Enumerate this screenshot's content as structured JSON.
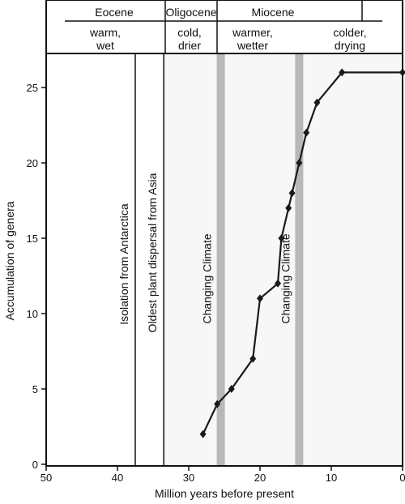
{
  "chart_data": {
    "type": "line",
    "xlabel": "Million years before present",
    "ylabel": "Accumulation of genera",
    "xlim": [
      50,
      0
    ],
    "ylim": [
      0,
      27
    ],
    "x_ticks": [
      50,
      40,
      30,
      20,
      10,
      0
    ],
    "y_ticks": [
      0,
      5,
      10,
      15,
      20,
      25
    ],
    "series": [
      {
        "x": [
          28,
          26,
          24,
          21,
          20,
          17.5,
          17,
          16,
          15.5,
          14.5,
          13.5,
          12,
          8.5,
          0
        ],
        "y": [
          2,
          4,
          5,
          7,
          11,
          12,
          15,
          17,
          18,
          20,
          22,
          24,
          26,
          26
        ]
      }
    ],
    "epochs": [
      {
        "name": "Eocene",
        "climate": "warm,\nwet",
        "start": 50,
        "end": 33.5
      },
      {
        "name": "Oligocene",
        "climate": "cold,\ndrier",
        "start": 33.5,
        "end": 23
      },
      {
        "name": "Miocene",
        "climate_left": "warmer,\nwetter",
        "climate_right": "colder,\ndrying",
        "start": 23,
        "end": 5.3
      }
    ],
    "events": [
      {
        "label": "Isolation from Antarctica",
        "x": 37.5
      },
      {
        "label": "Oldest plant dispersal from Asia",
        "x": 33.5
      }
    ],
    "climate_changes": [
      {
        "label": "Changing Climate",
        "x": 25.5
      },
      {
        "label": "Changing Climate",
        "x": 14.5
      }
    ],
    "colors": {
      "line": "#1a1a1a",
      "band": "#b8b8b8",
      "eocene_bg": "#ffffff",
      "post_eocene_bg": "#f7f7f7"
    }
  }
}
